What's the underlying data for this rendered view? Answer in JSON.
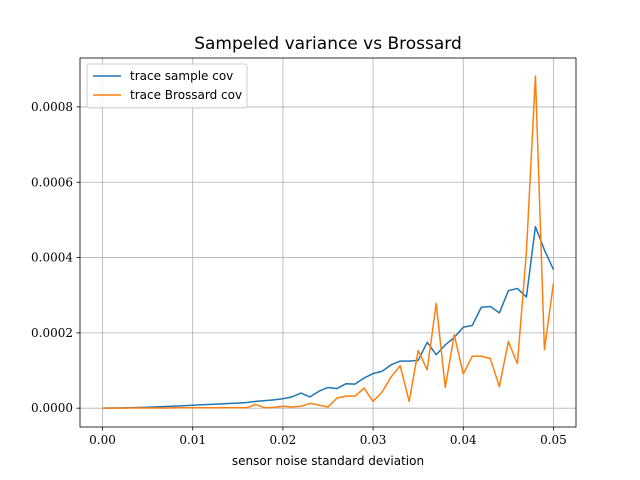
{
  "chart_data": {
    "type": "line",
    "title": "Sampeled variance vs Brossard",
    "xlabel": "sensor noise standard deviation",
    "ylabel": "",
    "xlim": [
      -0.0025,
      0.0525
    ],
    "ylim": [
      -5e-05,
      0.00093
    ],
    "xticks": [
      0.0,
      0.01,
      0.02,
      0.03,
      0.04,
      0.05
    ],
    "xtick_labels": [
      "0.00",
      "0.01",
      "0.02",
      "0.03",
      "0.04",
      "0.05"
    ],
    "yticks": [
      0.0,
      0.0002,
      0.0004,
      0.0006,
      0.0008
    ],
    "ytick_labels": [
      "0.0000",
      "0.0002",
      "0.0004",
      "0.0006",
      "0.0008"
    ],
    "grid": true,
    "legend": "top-left",
    "x": [
      0.0,
      0.001,
      0.002,
      0.003,
      0.004,
      0.005,
      0.006,
      0.007,
      0.008,
      0.009,
      0.01,
      0.011,
      0.012,
      0.013,
      0.014,
      0.015,
      0.016,
      0.017,
      0.018,
      0.019,
      0.02,
      0.021,
      0.022,
      0.023,
      0.024,
      0.025,
      0.026,
      0.027,
      0.028,
      0.029,
      0.03,
      0.031,
      0.032,
      0.033,
      0.034,
      0.035,
      0.036,
      0.037,
      0.038,
      0.039,
      0.04,
      0.041,
      0.042,
      0.043,
      0.044,
      0.045,
      0.046,
      0.047,
      0.048,
      0.049,
      0.05
    ],
    "series": [
      {
        "name": "trace sample cov",
        "color": "#1f77b4",
        "values": [
          0.0,
          3e-07,
          6e-07,
          1.1e-06,
          1.7e-06,
          2.5e-06,
          3.5e-06,
          4.5e-06,
          5.5e-06,
          6.5e-06,
          7.8e-06,
          9e-06,
          1e-05,
          1.1e-05,
          1.25e-05,
          1.35e-05,
          1.5e-05,
          1.8e-05,
          2e-05,
          2.2e-05,
          2.5e-05,
          3e-05,
          4e-05,
          3e-05,
          4.5e-05,
          5.5e-05,
          5.2e-05,
          6.5e-05,
          6.4e-05,
          8e-05,
          9.2e-05,
          9.8e-05,
          0.000115,
          0.000125,
          0.000125,
          0.000127,
          0.000175,
          0.000142,
          0.000168,
          0.000188,
          0.000215,
          0.00022,
          0.000268,
          0.00027,
          0.000253,
          0.000312,
          0.000318,
          0.000295,
          0.000482,
          0.00042,
          0.000368
        ]
      },
      {
        "name": "trace Brossard cov",
        "color": "#ff7f0e",
        "values": [
          0.0,
          0.0,
          0.0,
          5e-07,
          5e-07,
          5e-07,
          5e-07,
          5e-07,
          1e-06,
          1e-06,
          1e-06,
          1e-06,
          1e-06,
          1.5e-06,
          1.5e-06,
          1.5e-06,
          1e-06,
          1e-05,
          1e-06,
          2e-06,
          5e-06,
          3e-06,
          5e-06,
          1.3e-05,
          8e-06,
          3e-06,
          2.7e-05,
          3.2e-05,
          3.2e-05,
          5.3e-05,
          1.8e-05,
          4.3e-05,
          8.3e-05,
          0.000113,
          1.8e-05,
          0.000153,
          0.000102,
          0.000278,
          5.5e-05,
          0.000195,
          9.1e-05,
          0.000138,
          0.000138,
          0.000132,
          5.7e-05,
          0.000177,
          0.000118,
          0.000415,
          0.000882,
          0.000155,
          0.000332
        ]
      }
    ]
  }
}
